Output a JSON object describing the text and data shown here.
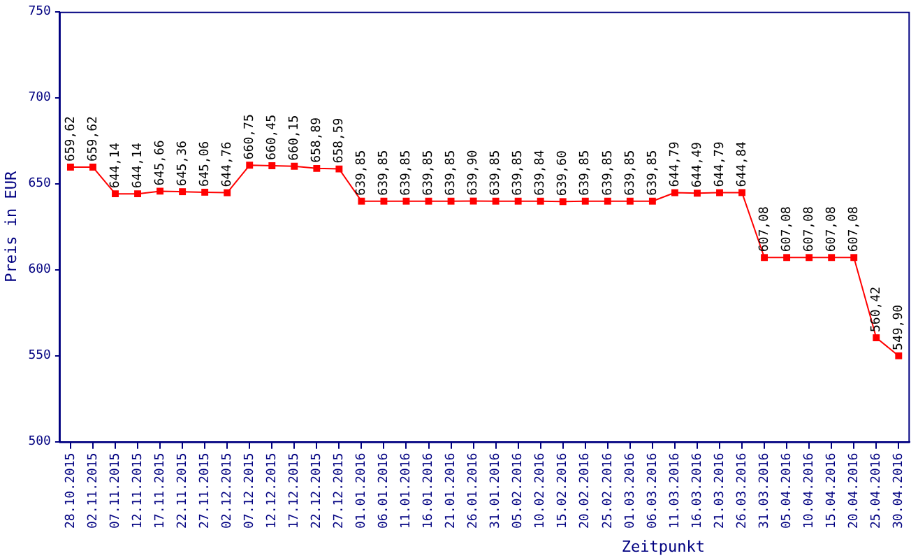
{
  "chart_data": {
    "type": "line",
    "xlabel": "Zeitpunkt",
    "ylabel": "Preis in EUR",
    "categories": [
      "28.10.2015",
      "02.11.2015",
      "07.11.2015",
      "12.11.2015",
      "17.11.2015",
      "22.11.2015",
      "27.11.2015",
      "02.12.2015",
      "07.12.2015",
      "12.12.2015",
      "17.12.2015",
      "22.12.2015",
      "27.12.2015",
      "01.01.2016",
      "06.01.2016",
      "11.01.2016",
      "16.01.2016",
      "21.01.2016",
      "26.01.2016",
      "31.01.2016",
      "05.02.2016",
      "10.02.2016",
      "15.02.2016",
      "20.02.2016",
      "25.02.2016",
      "01.03.2016",
      "06.03.2016",
      "11.03.2016",
      "16.03.2016",
      "21.03.2016",
      "26.03.2016",
      "31.03.2016",
      "05.04.2016",
      "10.04.2016",
      "15.04.2016",
      "20.04.2016",
      "25.04.2016",
      "30.04.2016"
    ],
    "values": [
      659.62,
      659.62,
      644.14,
      644.14,
      645.66,
      645.36,
      645.06,
      644.76,
      660.75,
      660.45,
      660.15,
      658.89,
      658.59,
      639.85,
      639.85,
      639.85,
      639.85,
      639.85,
      639.9,
      639.85,
      639.85,
      639.84,
      639.6,
      639.85,
      639.85,
      639.85,
      639.85,
      644.79,
      644.49,
      644.79,
      644.84,
      607.08,
      607.08,
      607.08,
      607.08,
      607.08,
      560.42,
      549.9
    ],
    "value_labels": [
      "659,62",
      "659,62",
      "644,14",
      "644,14",
      "645,66",
      "645,36",
      "645,06",
      "644,76",
      "660,75",
      "660,45",
      "660,15",
      "658,89",
      "658,59",
      "639,85",
      "639,85",
      "639,85",
      "639,85",
      "639,85",
      "639,90",
      "639,85",
      "639,85",
      "639,84",
      "639,60",
      "639,85",
      "639,85",
      "639,85",
      "639,85",
      "644,79",
      "644,49",
      "644,79",
      "644,84",
      "607,08",
      "607,08",
      "607,08",
      "607,08",
      "607,08",
      "560,42",
      "549,90"
    ],
    "color": "#ff0000",
    "marker": "square",
    "line_style": "solid",
    "ylim": [
      500,
      750
    ],
    "yticks": [
      500,
      550,
      600,
      650,
      700,
      750
    ]
  }
}
